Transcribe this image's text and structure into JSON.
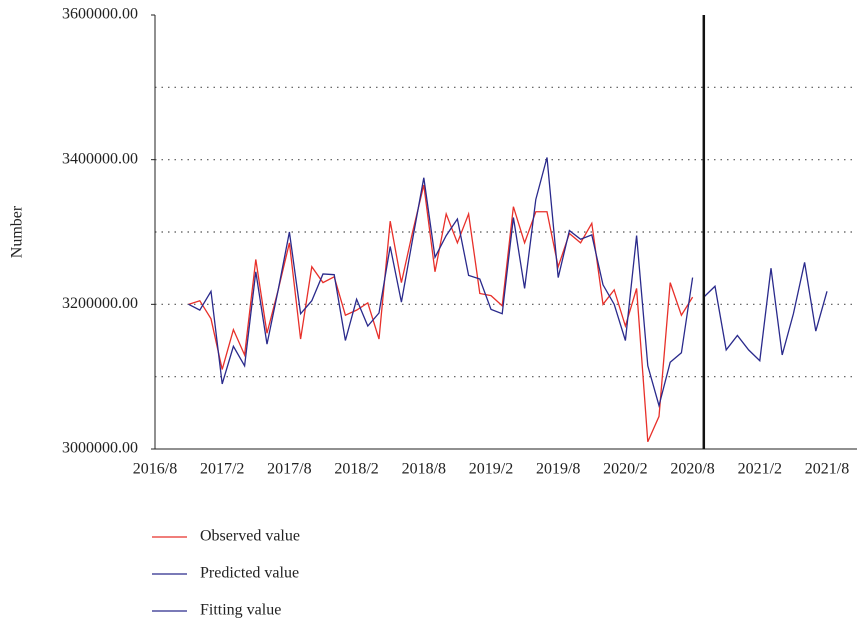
{
  "chart_data": {
    "type": "line",
    "ylabel": "Number",
    "xlim": [
      "2016/8",
      "2021/8"
    ],
    "xticks": [
      "2016/8",
      "2017/2",
      "2017/8",
      "2018/2",
      "2018/8",
      "2019/2",
      "2019/8",
      "2020/2",
      "2020/8",
      "2021/2",
      "2021/8"
    ],
    "ylim": [
      3000000,
      3600000
    ],
    "yticks": [
      {
        "value": 3000000,
        "label": "3000000.00"
      },
      {
        "value": 3200000,
        "label": "3200000.00"
      },
      {
        "value": 3400000,
        "label": "3400000.00"
      },
      {
        "value": 3600000,
        "label": "3600000.00"
      }
    ],
    "grid_lines": [
      3100000,
      3200000,
      3300000,
      3400000,
      3500000
    ],
    "vertical_line": "2020/9",
    "series": [
      {
        "name": "Observed value",
        "color": "#e8302a",
        "x": [
          "2016/11",
          "2016/12",
          "2017/1",
          "2017/2",
          "2017/3",
          "2017/4",
          "2017/5",
          "2017/6",
          "2017/7",
          "2017/8",
          "2017/9",
          "2017/10",
          "2017/11",
          "2017/12",
          "2018/1",
          "2018/2",
          "2018/3",
          "2018/4",
          "2018/5",
          "2018/6",
          "2018/7",
          "2018/8",
          "2018/9",
          "2018/10",
          "2018/11",
          "2018/12",
          "2019/1",
          "2019/2",
          "2019/3",
          "2019/4",
          "2019/5",
          "2019/6",
          "2019/7",
          "2019/8",
          "2019/9",
          "2019/10",
          "2019/11",
          "2019/12",
          "2020/1",
          "2020/2",
          "2020/3",
          "2020/4",
          "2020/5",
          "2020/6",
          "2020/7",
          "2020/8"
        ],
        "values": [
          3200000,
          3205000,
          3180000,
          3110000,
          3165000,
          3130000,
          3262000,
          3160000,
          3220000,
          3285000,
          3152000,
          3252000,
          3230000,
          3238000,
          3185000,
          3192000,
          3202000,
          3152000,
          3315000,
          3230000,
          3300000,
          3365000,
          3245000,
          3325000,
          3285000,
          3325000,
          3215000,
          3212000,
          3198000,
          3335000,
          3285000,
          3328000,
          3328000,
          3252000,
          3298000,
          3285000,
          3312000,
          3200000,
          3220000,
          3170000,
          3222000,
          3010000,
          3045000,
          3230000,
          3185000,
          3210000
        ]
      },
      {
        "name": "Predicted value",
        "color": "#2a2a8c",
        "x": [
          "2020/9",
          "2020/10",
          "2020/11",
          "2020/12",
          "2021/1",
          "2021/2",
          "2021/3",
          "2021/4",
          "2021/5",
          "2021/6",
          "2021/7",
          "2021/8"
        ],
        "values": [
          3210000,
          3225000,
          3137000,
          3157000,
          3137000,
          3122000,
          3250000,
          3130000,
          3187000,
          3258000,
          3163000,
          3218000
        ]
      },
      {
        "name": "Fitting value",
        "color": "#2a2a8c",
        "x": [
          "2016/11",
          "2016/12",
          "2017/1",
          "2017/2",
          "2017/3",
          "2017/4",
          "2017/5",
          "2017/6",
          "2017/7",
          "2017/8",
          "2017/9",
          "2017/10",
          "2017/11",
          "2017/12",
          "2018/1",
          "2018/2",
          "2018/3",
          "2018/4",
          "2018/5",
          "2018/6",
          "2018/7",
          "2018/8",
          "2018/9",
          "2018/10",
          "2018/11",
          "2018/12",
          "2019/1",
          "2019/2",
          "2019/3",
          "2019/4",
          "2019/5",
          "2019/6",
          "2019/7",
          "2019/8",
          "2019/9",
          "2019/10",
          "2019/11",
          "2019/12",
          "2020/1",
          "2020/2",
          "2020/3",
          "2020/4",
          "2020/5",
          "2020/6",
          "2020/7",
          "2020/8"
        ],
        "values": [
          3200000,
          3192000,
          3218000,
          3090000,
          3142000,
          3115000,
          3245000,
          3145000,
          3220000,
          3300000,
          3187000,
          3205000,
          3242000,
          3241000,
          3150000,
          3207000,
          3170000,
          3188000,
          3280000,
          3203000,
          3290000,
          3375000,
          3265000,
          3295000,
          3318000,
          3240000,
          3235000,
          3193000,
          3187000,
          3320000,
          3222000,
          3345000,
          3403000,
          3237000,
          3302000,
          3290000,
          3296000,
          3227000,
          3200000,
          3150000,
          3295000,
          3115000,
          3060000,
          3120000,
          3133000,
          3237000
        ]
      }
    ]
  }
}
